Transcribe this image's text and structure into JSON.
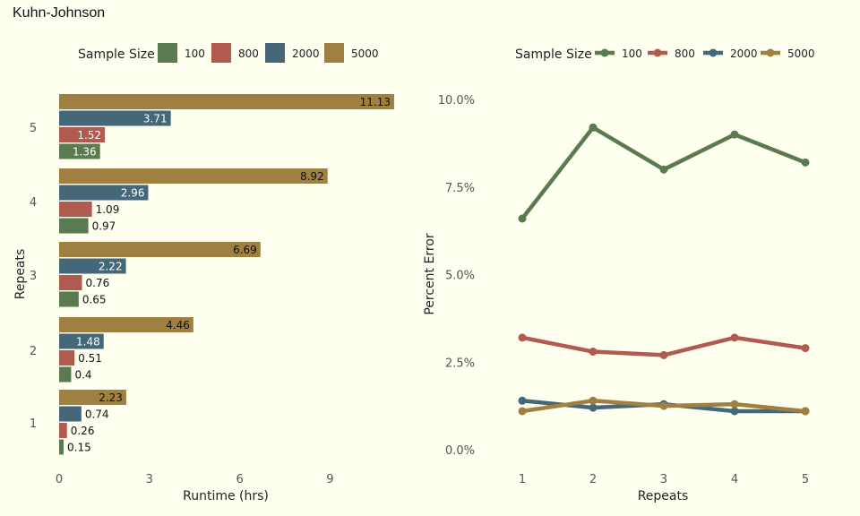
{
  "title": "Kuhn-Johnson",
  "colors": {
    "100": "#5a7a50",
    "800": "#b05a50",
    "2000": "#456878",
    "5000": "#a08040"
  },
  "chart_data": [
    {
      "type": "bar",
      "orientation": "horizontal",
      "xlabel": "Runtime (hrs)",
      "ylabel": "Repeats",
      "legend_title": "Sample Size",
      "legend_position": "top",
      "categories": [
        "1",
        "2",
        "3",
        "4",
        "5"
      ],
      "xticks": [
        "0",
        "3",
        "6",
        "9"
      ],
      "xlim": [
        0,
        11.5
      ],
      "series": [
        {
          "name": "100",
          "values": [
            0.15,
            0.4,
            0.65,
            0.97,
            1.36
          ],
          "labels": [
            "0.15",
            "0.4",
            "0.65",
            "0.97",
            "1.36"
          ]
        },
        {
          "name": "800",
          "values": [
            0.26,
            0.51,
            0.76,
            1.09,
            1.52
          ],
          "labels": [
            "0.26",
            "0.51",
            "0.76",
            "1.09",
            "1.52"
          ]
        },
        {
          "name": "2000",
          "values": [
            0.74,
            1.48,
            2.22,
            2.96,
            3.71
          ],
          "labels": [
            "0.74",
            "1.48",
            "2.22",
            "2.96",
            "3.71"
          ]
        },
        {
          "name": "5000",
          "values": [
            2.23,
            4.46,
            6.69,
            8.92,
            11.13
          ],
          "labels": [
            "2.23",
            "4.46",
            "6.69",
            "8.92",
            "11.13"
          ]
        }
      ]
    },
    {
      "type": "line",
      "xlabel": "Repeats",
      "ylabel": "Percent Error",
      "legend_title": "Sample Size",
      "legend_position": "top",
      "x": [
        "1",
        "2",
        "3",
        "4",
        "5"
      ],
      "yticks": [
        "0.0%",
        "2.5%",
        "5.0%",
        "7.5%",
        "10.0%"
      ],
      "ylim": [
        0,
        10.5
      ],
      "series": [
        {
          "name": "100",
          "values": [
            6.6,
            9.2,
            8.0,
            9.0,
            8.2
          ]
        },
        {
          "name": "800",
          "values": [
            3.2,
            2.8,
            2.7,
            3.2,
            2.9
          ]
        },
        {
          "name": "2000",
          "values": [
            1.4,
            1.2,
            1.3,
            1.1,
            1.1
          ]
        },
        {
          "name": "5000",
          "values": [
            1.1,
            1.4,
            1.25,
            1.3,
            1.1
          ]
        }
      ]
    }
  ]
}
